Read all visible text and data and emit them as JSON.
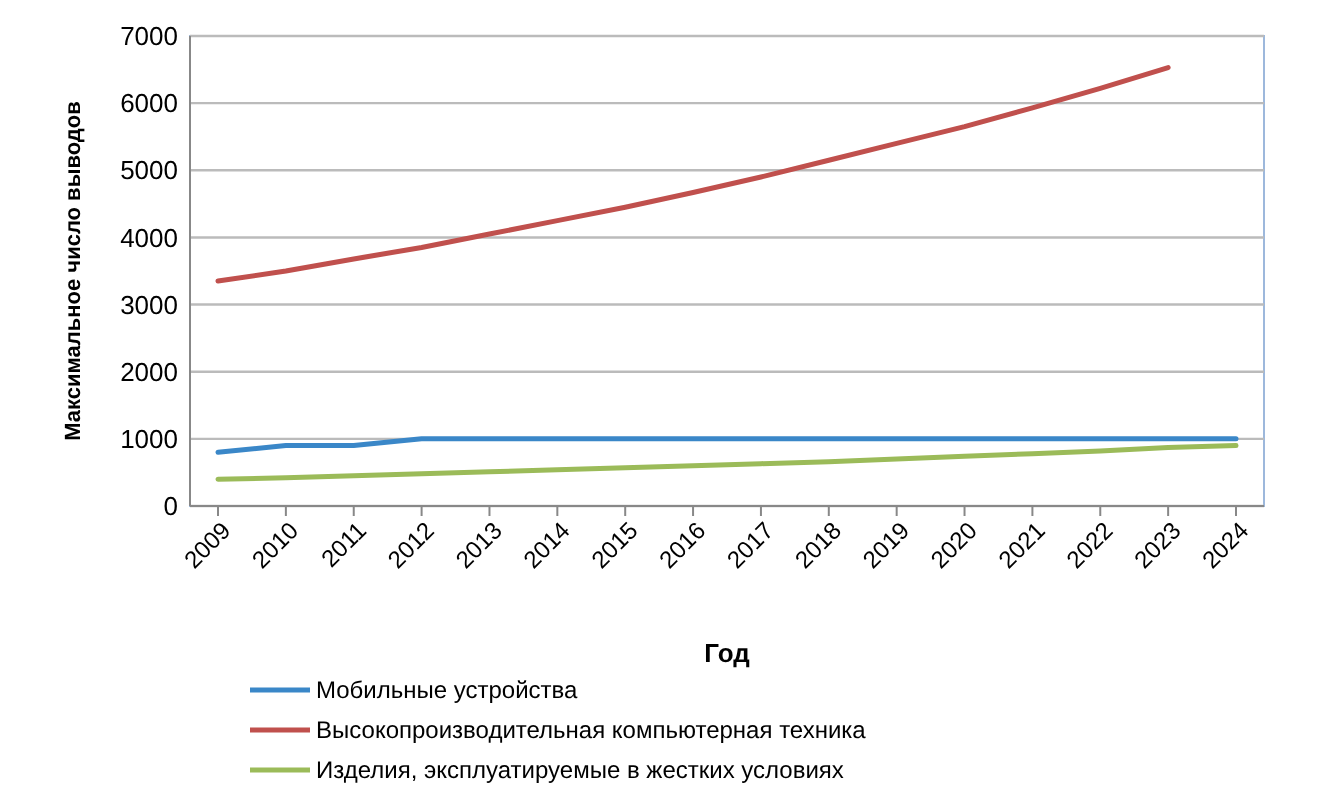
{
  "chart_data": {
    "type": "line",
    "xlabel": "Год",
    "ylabel": "Максимальное число выводов",
    "categories": [
      "2009",
      "2010",
      "2011",
      "2012",
      "2013",
      "2014",
      "2015",
      "2016",
      "2017",
      "2018",
      "2019",
      "2020",
      "2021",
      "2022",
      "2023",
      "2024"
    ],
    "series": [
      {
        "name": "Мобильные устройства",
        "color": "#3a87c8",
        "values": [
          800,
          900,
          900,
          1000,
          1000,
          1000,
          1000,
          1000,
          1000,
          1000,
          1000,
          1000,
          1000,
          1000,
          1000,
          1000
        ]
      },
      {
        "name": "Высокопроизводительная компьютерная техника",
        "color": "#c0504d",
        "values": [
          3350,
          3500,
          3680,
          3850,
          4050,
          4250,
          4450,
          4670,
          4900,
          5150,
          5400,
          5650,
          5930,
          6220,
          6530,
          null
        ]
      },
      {
        "name": "Изделия, эксплуатируемые в жестких условиях",
        "color": "#9bbb59",
        "values": [
          400,
          420,
          450,
          480,
          510,
          540,
          570,
          600,
          630,
          660,
          700,
          740,
          780,
          820,
          870,
          900
        ]
      }
    ],
    "ylim": [
      0,
      7000
    ],
    "yticks": [
      0,
      1000,
      2000,
      3000,
      4000,
      5000,
      6000,
      7000
    ],
    "grid": "y",
    "legend": "bottom",
    "marker": "none",
    "line_style": "solid"
  }
}
